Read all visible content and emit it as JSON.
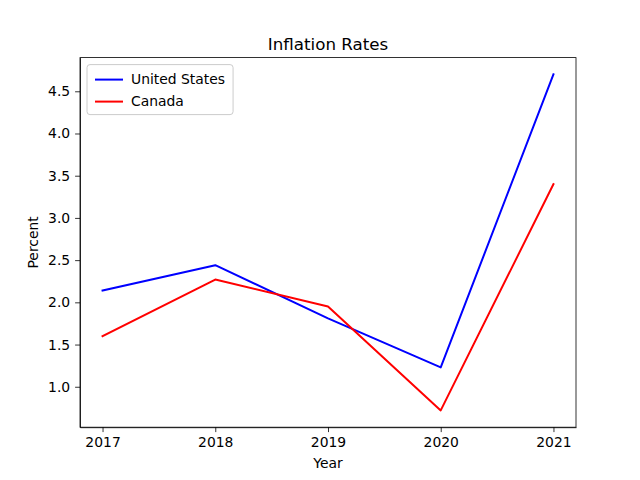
{
  "chart_data": {
    "type": "line",
    "title": "Inflation Rates",
    "x_label": "Year",
    "y_label": "Percent",
    "x": [
      2017,
      2018,
      2019,
      2020,
      2021
    ],
    "series": [
      {
        "name": "United States",
        "color": "#0000ff",
        "line_style": "solid",
        "values": [
          2.14,
          2.44,
          1.81,
          1.23,
          4.7
        ]
      },
      {
        "name": "Canada",
        "color": "#ff0000",
        "line_style": "solid",
        "values": [
          1.6,
          2.27,
          1.95,
          0.72,
          3.4
        ]
      }
    ],
    "xlim": [
      2016.8,
      2021.2
    ],
    "xticks": [
      2017,
      2018,
      2019,
      2020,
      2021
    ],
    "ylim": [
      0.521,
      4.899
    ],
    "yticks": [
      {
        "value": 1,
        "label": "1.0"
      },
      {
        "value": 1.5,
        "label": "1.5"
      },
      {
        "value": 2,
        "label": "2.0"
      },
      {
        "value": 2.5,
        "label": "2.5"
      },
      {
        "value": 3,
        "label": "3.0"
      },
      {
        "value": 3.5,
        "label": "3.5"
      },
      {
        "value": 4,
        "label": "4.0"
      },
      {
        "value": 4.5,
        "label": "4.5"
      }
    ],
    "grid": false,
    "legend": "upper left"
  }
}
